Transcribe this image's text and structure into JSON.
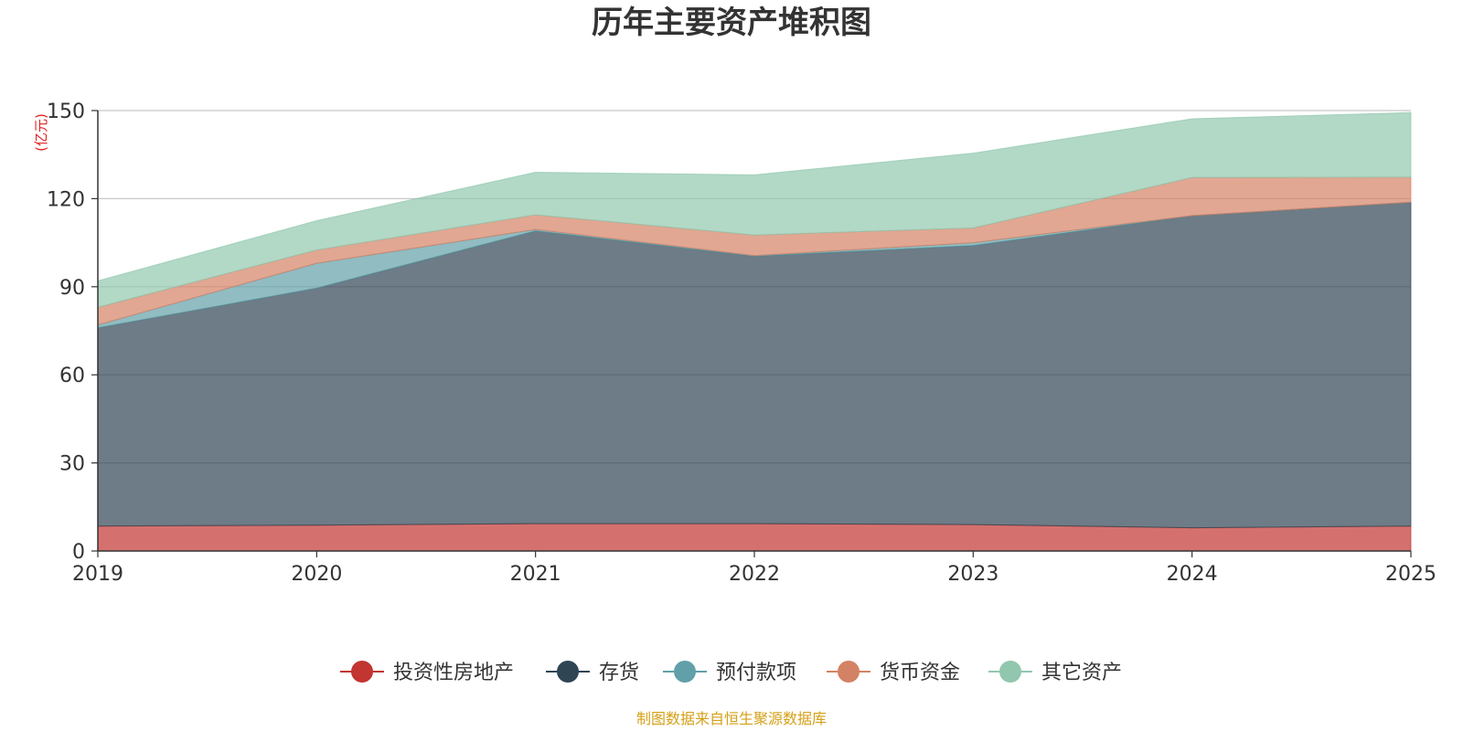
{
  "chart_data": {
    "type": "area",
    "stacked": true,
    "title": "历年主要资产堆积图",
    "ylabel": "(亿元)",
    "xlabel": "",
    "x": [
      "2019",
      "2020",
      "2021",
      "2022",
      "2023",
      "2024",
      "2025"
    ],
    "ylim": [
      0,
      150
    ],
    "yticks": [
      0,
      30,
      60,
      90,
      120,
      150
    ],
    "grid": true,
    "legend_position": "bottom",
    "series": [
      {
        "name": "投资性房地产",
        "color": "#c23531",
        "values": [
          8.5,
          8.8,
          9.3,
          9.3,
          9.0,
          7.9,
          8.5
        ]
      },
      {
        "name": "存货",
        "color": "#2f4554",
        "values": [
          67.5,
          80.7,
          99.7,
          91.1,
          95.0,
          106.3,
          110.3
        ]
      },
      {
        "name": "预付款项",
        "color": "#61a0a8",
        "values": [
          1.0,
          8.5,
          0.5,
          0.2,
          1.0,
          0.0,
          0.0
        ]
      },
      {
        "name": "货币资金",
        "color": "#d48265",
        "values": [
          6.0,
          4.5,
          5.0,
          7.0,
          5.0,
          13.0,
          8.5
        ]
      },
      {
        "name": "其它资产",
        "color": "#91c7ae",
        "values": [
          9.0,
          10.0,
          14.5,
          20.5,
          25.5,
          20.0,
          22.0
        ]
      }
    ],
    "source": "制图数据来自恒生聚源数据库"
  }
}
